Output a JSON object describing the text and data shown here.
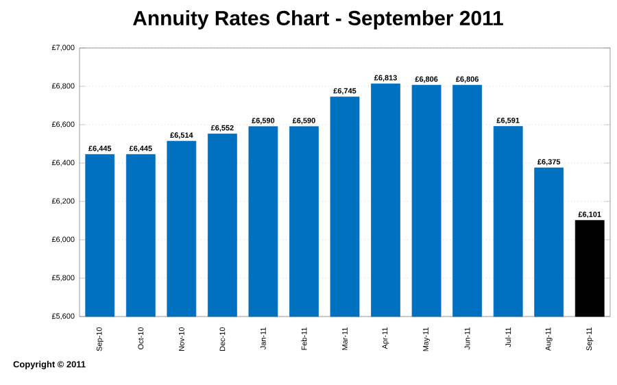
{
  "chart_data": {
    "type": "bar",
    "title": "Annuity Rates Chart - September 2011",
    "categories": [
      "Sep-10",
      "Oct-10",
      "Nov-10",
      "Dec-10",
      "Jan-11",
      "Feb-11",
      "Mar-11",
      "Apr-11",
      "May-11",
      "Jun-11",
      "Jul-11",
      "Aug-11",
      "Sep-11"
    ],
    "values": [
      6445,
      6445,
      6514,
      6552,
      6590,
      6590,
      6745,
      6813,
      6806,
      6806,
      6591,
      6375,
      6101
    ],
    "value_labels": [
      "£6,445",
      "£6,445",
      "£6,514",
      "£6,552",
      "£6,590",
      "£6,590",
      "£6,745",
      "£6,813",
      "£6,806",
      "£6,806",
      "£6,591",
      "£6,375",
      "£6,101"
    ],
    "colors": [
      "#0070c0",
      "#0070c0",
      "#0070c0",
      "#0070c0",
      "#0070c0",
      "#0070c0",
      "#0070c0",
      "#0070c0",
      "#0070c0",
      "#0070c0",
      "#0070c0",
      "#0070c0",
      "#000000"
    ],
    "ylim": [
      5600,
      7000
    ],
    "yticks": [
      {
        "value": 5600,
        "label": "£5,600"
      },
      {
        "value": 5800,
        "label": "£5,800"
      },
      {
        "value": 6000,
        "label": "£6,000"
      },
      {
        "value": 6200,
        "label": "£6,200"
      },
      {
        "value": 6400,
        "label": "£6,400"
      },
      {
        "value": 6600,
        "label": "£6,600"
      },
      {
        "value": 6800,
        "label": "£6,800"
      },
      {
        "value": 7000,
        "label": "£7,000"
      }
    ],
    "grid": "y",
    "annotations": [
      "Copyright © 2011"
    ]
  }
}
